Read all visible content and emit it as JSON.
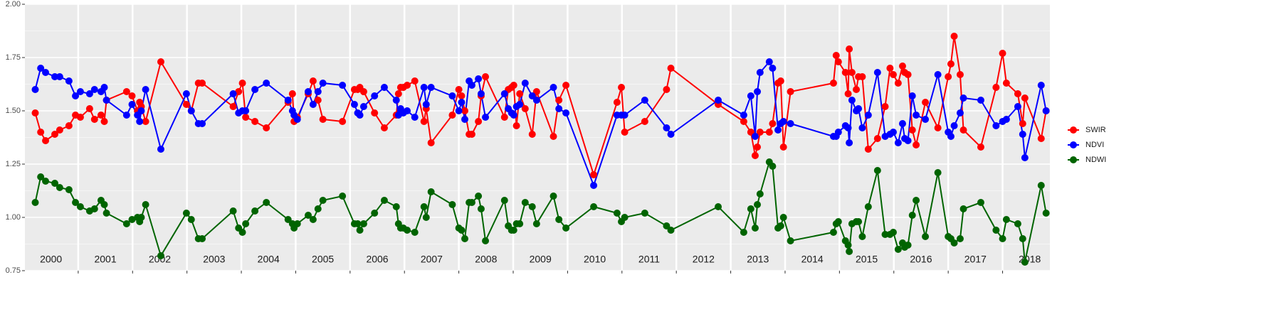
{
  "chart_data": {
    "type": "line",
    "x": [
      2000.21,
      2000.31,
      2000.4,
      2000.57,
      2000.66,
      2000.83,
      2000.95,
      2001.04,
      2001.21,
      2001.3,
      2001.42,
      2001.48,
      2001.52,
      2001.89,
      2001.99,
      2002.09,
      2002.13,
      2002.16,
      2002.24,
      2002.52,
      2002.99,
      2003.08,
      2003.21,
      2003.28,
      2003.85,
      2003.95,
      2004.02,
      2004.08,
      2004.25,
      2004.46,
      2004.86,
      2004.94,
      2004.97,
      2005.03,
      2005.23,
      2005.32,
      2005.41,
      2005.5,
      2005.86,
      2006.08,
      2006.14,
      2006.18,
      2006.25,
      2006.45,
      2006.63,
      2006.85,
      2006.89,
      2006.93,
      2006.98,
      2007.05,
      2007.19,
      2007.36,
      2007.4,
      2007.49,
      2007.88,
      2008.0,
      2008.05,
      2008.11,
      2008.19,
      2008.24,
      2008.36,
      2008.41,
      2008.49,
      2008.84,
      2008.91,
      2008.97,
      2009.01,
      2009.06,
      2009.12,
      2009.22,
      2009.35,
      2009.43,
      2009.74,
      2009.84,
      2009.97,
      2010.48,
      2010.91,
      2010.99,
      2011.05,
      2011.42,
      2011.82,
      2011.9,
      2012.77,
      2013.24,
      2013.37,
      2013.45,
      2013.49,
      2013.54,
      2013.71,
      2013.77,
      2013.87,
      2013.92,
      2013.97,
      2014.1,
      2014.89,
      2014.94,
      2014.98,
      2015.11,
      2015.16,
      2015.18,
      2015.23,
      2015.31,
      2015.35,
      2015.42,
      2015.53,
      2015.7,
      2015.84,
      2015.93,
      2015.99,
      2016.08,
      2016.16,
      2016.2,
      2016.26,
      2016.34,
      2016.41,
      2016.58,
      2016.81,
      2017.0,
      2017.05,
      2017.11,
      2017.22,
      2017.28,
      2017.6,
      2017.88,
      2018.0,
      2018.07,
      2018.28,
      2018.37,
      2018.41,
      2018.71,
      2018.8
    ],
    "series": [
      {
        "name": "SWIR",
        "color": "#ff0000",
        "values": [
          1.49,
          1.4,
          1.36,
          1.39,
          1.41,
          1.43,
          1.48,
          1.47,
          1.51,
          1.46,
          1.48,
          1.45,
          1.55,
          1.59,
          1.57,
          1.5,
          1.54,
          1.52,
          1.45,
          1.73,
          1.53,
          1.5,
          1.63,
          1.63,
          1.52,
          1.59,
          1.63,
          1.47,
          1.45,
          1.42,
          1.54,
          1.58,
          1.45,
          1.47,
          1.58,
          1.64,
          1.55,
          1.46,
          1.45,
          1.6,
          1.6,
          1.61,
          1.59,
          1.49,
          1.42,
          1.48,
          1.58,
          1.61,
          1.61,
          1.62,
          1.64,
          1.45,
          1.51,
          1.35,
          1.48,
          1.6,
          1.57,
          1.5,
          1.39,
          1.39,
          1.45,
          1.57,
          1.66,
          1.47,
          1.6,
          1.61,
          1.62,
          1.43,
          1.58,
          1.51,
          1.39,
          1.59,
          1.38,
          1.55,
          1.62,
          1.2,
          1.54,
          1.61,
          1.4,
          1.45,
          1.6,
          1.7,
          1.53,
          1.45,
          1.4,
          1.29,
          1.33,
          1.4,
          1.4,
          1.44,
          1.63,
          1.64,
          1.33,
          1.59,
          1.63,
          1.76,
          1.73,
          1.68,
          1.58,
          1.79,
          1.68,
          1.6,
          1.66,
          1.66,
          1.32,
          1.37,
          1.52,
          1.7,
          1.67,
          1.63,
          1.71,
          1.68,
          1.67,
          1.41,
          1.34,
          1.54,
          1.42,
          1.66,
          1.72,
          1.85,
          1.67,
          1.41,
          1.33,
          1.61,
          1.77,
          1.63,
          1.58,
          1.44,
          1.56,
          1.37,
          1.5
        ]
      },
      {
        "name": "NDVI",
        "color": "#0000ff",
        "values": [
          1.6,
          1.7,
          1.68,
          1.66,
          1.66,
          1.64,
          1.57,
          1.59,
          1.58,
          1.6,
          1.59,
          1.61,
          1.55,
          1.48,
          1.53,
          1.48,
          1.45,
          1.5,
          1.6,
          1.32,
          1.58,
          1.5,
          1.44,
          1.44,
          1.58,
          1.49,
          1.5,
          1.5,
          1.6,
          1.63,
          1.55,
          1.5,
          1.48,
          1.46,
          1.59,
          1.53,
          1.59,
          1.63,
          1.62,
          1.53,
          1.49,
          1.48,
          1.52,
          1.57,
          1.61,
          1.55,
          1.48,
          1.51,
          1.49,
          1.5,
          1.47,
          1.61,
          1.53,
          1.61,
          1.57,
          1.5,
          1.54,
          1.46,
          1.64,
          1.62,
          1.65,
          1.58,
          1.47,
          1.58,
          1.51,
          1.49,
          1.48,
          1.52,
          1.53,
          1.63,
          1.57,
          1.55,
          1.61,
          1.51,
          1.49,
          1.15,
          1.48,
          1.48,
          1.48,
          1.55,
          1.42,
          1.39,
          1.55,
          1.48,
          1.57,
          1.38,
          1.59,
          1.68,
          1.73,
          1.7,
          1.41,
          1.44,
          1.45,
          1.44,
          1.38,
          1.38,
          1.4,
          1.43,
          1.42,
          1.35,
          1.55,
          1.5,
          1.51,
          1.42,
          1.48,
          1.68,
          1.38,
          1.39,
          1.4,
          1.35,
          1.44,
          1.37,
          1.36,
          1.57,
          1.48,
          1.46,
          1.67,
          1.4,
          1.38,
          1.43,
          1.49,
          1.56,
          1.55,
          1.43,
          1.45,
          1.46,
          1.52,
          1.39,
          1.28,
          1.62,
          1.5
        ]
      },
      {
        "name": "NDWI",
        "color": "#006400",
        "values": [
          1.07,
          1.19,
          1.17,
          1.16,
          1.14,
          1.13,
          1.07,
          1.05,
          1.03,
          1.04,
          1.08,
          1.06,
          1.02,
          0.97,
          0.99,
          1.0,
          0.98,
          1.0,
          1.06,
          0.82,
          1.02,
          0.99,
          0.9,
          0.9,
          1.03,
          0.95,
          0.93,
          0.97,
          1.03,
          1.07,
          0.99,
          0.97,
          0.95,
          0.97,
          1.01,
          0.99,
          1.04,
          1.08,
          1.1,
          0.97,
          0.97,
          0.94,
          0.97,
          1.02,
          1.08,
          1.05,
          0.97,
          0.95,
          0.95,
          0.94,
          0.93,
          1.05,
          1.0,
          1.12,
          1.06,
          0.95,
          0.94,
          0.9,
          1.07,
          1.07,
          1.1,
          1.04,
          0.89,
          1.08,
          0.96,
          0.94,
          0.94,
          0.97,
          0.97,
          1.07,
          1.05,
          0.97,
          1.1,
          0.99,
          0.95,
          1.05,
          1.02,
          0.98,
          1.0,
          1.02,
          0.96,
          0.94,
          1.05,
          0.93,
          1.04,
          0.95,
          1.06,
          1.11,
          1.26,
          1.24,
          0.95,
          0.96,
          1.0,
          0.89,
          0.93,
          0.97,
          0.98,
          0.89,
          0.87,
          0.84,
          0.97,
          0.98,
          0.98,
          0.91,
          1.05,
          1.22,
          0.92,
          0.92,
          0.93,
          0.85,
          0.88,
          0.86,
          0.87,
          1.01,
          1.08,
          0.91,
          1.21,
          0.91,
          0.9,
          0.88,
          0.9,
          1.04,
          1.07,
          0.94,
          0.9,
          0.99,
          0.97,
          0.9,
          0.79,
          1.15,
          1.02
        ]
      }
    ],
    "xlim": [
      2000.02,
      2018.87
    ],
    "year_lines": [
      2001,
      2002,
      2003,
      2004,
      2005,
      2006,
      2007,
      2008,
      2009,
      2010,
      2011,
      2012,
      2013,
      2014,
      2015,
      2016,
      2017,
      2018
    ],
    "xticks": [
      {
        "value": 2000.5,
        "label": "2000"
      },
      {
        "value": 2001.5,
        "label": "2001"
      },
      {
        "value": 2002.5,
        "label": "2002"
      },
      {
        "value": 2003.5,
        "label": "2003"
      },
      {
        "value": 2004.5,
        "label": "2004"
      },
      {
        "value": 2005.5,
        "label": "2005"
      },
      {
        "value": 2006.5,
        "label": "2006"
      },
      {
        "value": 2007.5,
        "label": "2007"
      },
      {
        "value": 2008.5,
        "label": "2008"
      },
      {
        "value": 2009.5,
        "label": "2009"
      },
      {
        "value": 2010.5,
        "label": "2010"
      },
      {
        "value": 2011.5,
        "label": "2011"
      },
      {
        "value": 2012.5,
        "label": "2012"
      },
      {
        "value": 2013.5,
        "label": "2013"
      },
      {
        "value": 2014.5,
        "label": "2014"
      },
      {
        "value": 2015.5,
        "label": "2015"
      },
      {
        "value": 2016.5,
        "label": "2016"
      },
      {
        "value": 2017.5,
        "label": "2017"
      },
      {
        "value": 2018.5,
        "label": "2018"
      }
    ],
    "ylim": [
      0.75,
      2.0
    ],
    "yticks": [
      {
        "value": 0.75,
        "label": "0.75"
      },
      {
        "value": 1.0,
        "label": "1.00"
      },
      {
        "value": 1.25,
        "label": "1.25"
      },
      {
        "value": 1.5,
        "label": "1.50"
      },
      {
        "value": 1.75,
        "label": "1.75"
      },
      {
        "value": 2.0,
        "label": "2.00"
      }
    ],
    "grid": true,
    "legend": "right"
  }
}
